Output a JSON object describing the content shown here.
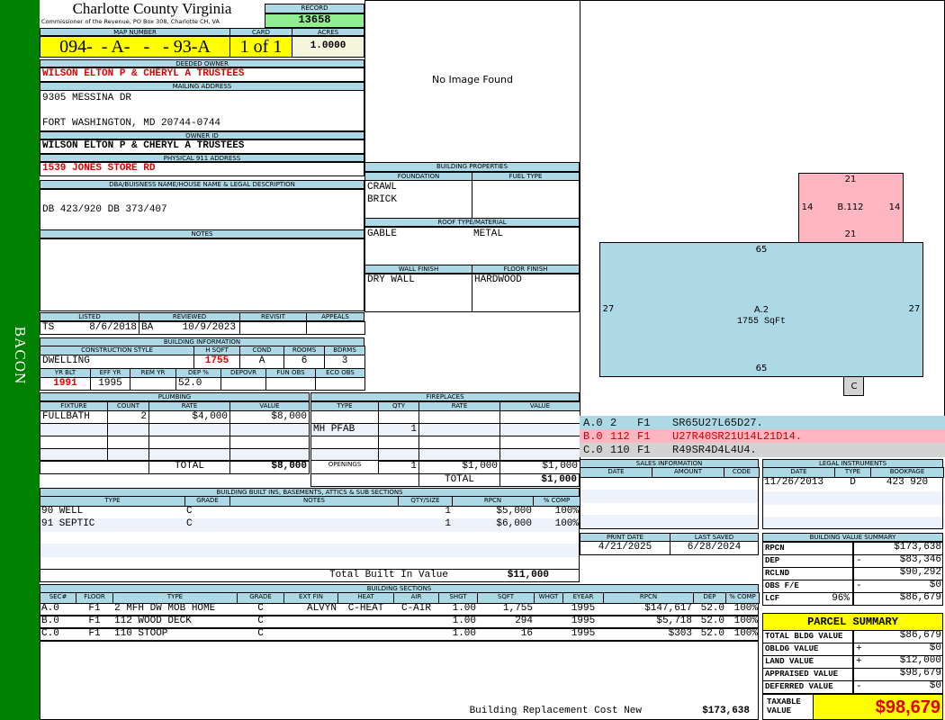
{
  "sidebar": {
    "district": "BACON"
  },
  "header": {
    "county": "Charlotte County Virginia",
    "office": "Commissioner of the Revenue, PO Box 308, Charlotte CH, VA",
    "record_label": "RECORD",
    "record": "13658",
    "map_label": "MAP NUMBER",
    "map_number": "094-  - A-   -   - 93-A",
    "card_label": "CARD",
    "card": "1 of 1",
    "acres_label": "ACRES",
    "acres": "1.0000"
  },
  "owner": {
    "deeded_label": "DEEDED OWNER",
    "deeded": "WILSON ELTON P & CHERYL A TRUSTEES",
    "mailing_label": "MAILING ADDRESS",
    "mailing_line1": "9305 MESSINA DR",
    "mailing_line2": "FORT WASHINGTON, MD 20744-0744",
    "id_label": "OWNER ID",
    "id": "WILSON ELTON P & CHERYL A TRUSTEES",
    "physical_label": "PHYSICAL 911 ADDRESS",
    "physical": "1539 JONES STORE RD",
    "dba_label": "DBA/BUISNESS NAME/HOUSE NAME & LEGAL DESCRIPTION",
    "dba": "DB 423/920 DB 373/407",
    "notes_label": "NOTES"
  },
  "image": {
    "text": "No Image Found"
  },
  "listing": {
    "listed_label": "LISTED",
    "reviewed_label": "REVIEWED",
    "revisit_label": "REVISIT",
    "appeals_label": "APPEALS",
    "listed_by": "TS",
    "listed_date": "8/6/2018",
    "reviewed_by": "BA",
    "reviewed_date": "10/9/2023"
  },
  "building_info": {
    "label": "BUILDING INFORMATION",
    "headers": [
      "CONSTRUCTION STYLE",
      "H SQFT",
      "COND",
      "ROOMS",
      "BDRMS"
    ],
    "style": "DWELLING",
    "hsqft": "1755",
    "cond": "A",
    "rooms": "6",
    "bdrms": "3",
    "headers2": [
      "YR BLT",
      "EFF YR",
      "REM YR",
      "DEP %",
      "DEPOVR",
      "FUN OBS",
      "ECO OBS"
    ],
    "yr_blt": "1991",
    "eff_yr": "1995",
    "dep": "52.0"
  },
  "building_properties": {
    "label": "BUILDING PROPERTIES",
    "foundation_label": "FOUNDATION",
    "fuel_label": "FUEL TYPE",
    "foundation": [
      "CRAWL",
      "BRICK"
    ],
    "roof_label": "ROOF TYPE/MATERIAL",
    "roof_type": "GABLE",
    "roof_material": "METAL",
    "wall_label": "WALL FINISH",
    "floor_label": "FLOOR FINISH",
    "wall": "DRY WALL",
    "floor": "HARDWOOD"
  },
  "plumbing": {
    "label": "PLUMBING",
    "headers": [
      "FIXTURE",
      "COUNT",
      "RATE",
      "VALUE"
    ],
    "rows": [
      [
        "FULLBATH",
        "2",
        "$4,000",
        "$8,000"
      ]
    ],
    "total_label": "TOTAL",
    "total": "$8,000"
  },
  "fireplaces": {
    "label": "FIREPLACES",
    "headers": [
      "TYPE",
      "QTY",
      "RATE",
      "VALUE"
    ],
    "rows": [
      [
        "",
        ""
      ],
      [
        "MH PFAB",
        "1"
      ]
    ],
    "openings_label": "OPENINGS",
    "openings_qty": "1",
    "openings_rate": "$1,000",
    "openings_value": "$1,000",
    "total_label": "TOTAL",
    "total": "$1,000"
  },
  "built_ins": {
    "label": "BUILDING BUILT INS, BASEMENTS, ATTICS & SUB SECTIONS",
    "headers": [
      "TYPE",
      "GRADE",
      "NOTES",
      "QTY/SIZE",
      "RPCN",
      "% COMP"
    ],
    "rows": [
      [
        "90 WELL",
        "C",
        "",
        "1",
        "$5,000",
        "100%"
      ],
      [
        "91 SEPTIC",
        "C",
        "",
        "1",
        "$6,000",
        "100%"
      ]
    ],
    "total_label": "Total Built In Value",
    "total": "$11,000"
  },
  "sections": {
    "label": "BUILDING SECTIONS",
    "headers": [
      "SEC#",
      "FLOOR",
      "TYPE",
      "GRADE",
      "EXT FIN",
      "HEAT",
      "AIR",
      "SHGT",
      "SQFT",
      "WHGT",
      "EYEAR",
      "RPCN",
      "DEP",
      "% COMP"
    ],
    "rows": [
      [
        "A.0",
        "F1",
        "2 MFH DW MOB HOME",
        "C",
        "ALVYN",
        "C-HEAT",
        "C-AIR",
        "1.00",
        "1,755",
        "",
        "1995",
        "$147,617",
        "52.0",
        "100%"
      ],
      [
        "B.0",
        "F1",
        "112 WOOD DECK",
        "C",
        "",
        "",
        "",
        "1.00",
        "294",
        "",
        "1995",
        "$5,718",
        "52.0",
        "100%"
      ],
      [
        "C.0",
        "F1",
        "110 STOOP",
        "C",
        "",
        "",
        "",
        "1.00",
        "16",
        "",
        "1995",
        "$303",
        "52.0",
        "100%"
      ]
    ],
    "rcn_label": "Building Replacement Cost New",
    "rcn": "$173,638"
  },
  "sketch": {
    "b_top": "21",
    "b_left": "14",
    "b_right": "14",
    "b_label": "B.112",
    "b_bottom": "21",
    "a_top": "65",
    "a_left": "27",
    "a_right": "27",
    "a_label": "A.2",
    "a_area": "1755 SqFt",
    "a_bottom": "65",
    "c_label": "C",
    "colors": {
      "a": "#add8e6",
      "b": "#ffb6c1",
      "c": "#d3d3d3"
    },
    "lines": [
      [
        "A.0",
        "2",
        "F1",
        "SR65U27L65D27."
      ],
      [
        "B.0",
        "112",
        "F1",
        "U27R40SR21U14L21D14."
      ],
      [
        "C.0",
        "110",
        "F1",
        "R49SR4D4L4U4."
      ]
    ]
  },
  "sales": {
    "label": "SALES INFORMATION",
    "headers": [
      "DATE",
      "AMOUNT",
      "CODE"
    ]
  },
  "legal": {
    "label": "LEGAL INSTRUMENTS",
    "headers": [
      "DATE",
      "TYPE",
      "BOOKPAGE"
    ],
    "rows": [
      [
        "11/26/2013",
        "D",
        "423 920"
      ]
    ]
  },
  "dates": {
    "print_label": "PRINT DATE",
    "print": "4/21/2025",
    "saved_label": "LAST SAVED",
    "saved": "6/28/2024"
  },
  "value_summary": {
    "label": "BUILDING VALUE SUMMARY",
    "rows": [
      [
        "RPCN",
        "",
        "$173,638"
      ],
      [
        "DEP",
        "-",
        "$83,346"
      ],
      [
        "RCLND",
        "",
        "$90,292"
      ],
      [
        "OBS F/E",
        "-",
        "$0"
      ],
      [
        "LCF",
        "",
        "$86,679"
      ]
    ],
    "lcf_pct": "96%"
  },
  "parcel": {
    "label": "PARCEL SUMMARY",
    "rows": [
      [
        "TOTAL BLDG VALUE",
        "",
        "$86,679"
      ],
      [
        "OBLDG VALUE",
        "+",
        "$0"
      ],
      [
        "LAND VALUE",
        "+",
        "$12,000"
      ],
      [
        "APPRAISED VALUE",
        "",
        "$98,679"
      ],
      [
        "DEFERRED VALUE",
        "-",
        "$0"
      ]
    ],
    "taxable_label": "TAXABLE VALUE",
    "taxable": "$98,679"
  }
}
